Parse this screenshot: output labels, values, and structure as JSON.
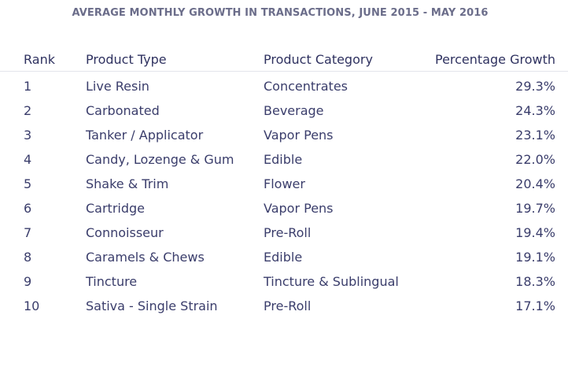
{
  "chart_data": {
    "type": "table",
    "title": "AVERAGE MONTHLY GROWTH IN TRANSACTIONS, JUNE 2015 - MAY 2016",
    "columns": [
      "Rank",
      "Product Type",
      "Product Category",
      "Percentage Growth"
    ],
    "rows": [
      {
        "rank": "1",
        "type": "Live Resin",
        "category": "Concentrates",
        "growth": "29.3%"
      },
      {
        "rank": "2",
        "type": "Carbonated",
        "category": "Beverage",
        "growth": "24.3%"
      },
      {
        "rank": "3",
        "type": "Tanker / Applicator",
        "category": "Vapor Pens",
        "growth": "23.1%"
      },
      {
        "rank": "4",
        "type": "Candy, Lozenge & Gum",
        "category": "Edible",
        "growth": "22.0%"
      },
      {
        "rank": "5",
        "type": "Shake & Trim",
        "category": "Flower",
        "growth": "20.4%"
      },
      {
        "rank": "6",
        "type": "Cartridge",
        "category": "Vapor Pens",
        "growth": "19.7%"
      },
      {
        "rank": "7",
        "type": "Connoisseur",
        "category": "Pre-Roll",
        "growth": "19.4%"
      },
      {
        "rank": "8",
        "type": "Caramels & Chews",
        "category": "Edible",
        "growth": "19.1%"
      },
      {
        "rank": "9",
        "type": "Tincture",
        "category": "Tincture & Sublingual",
        "growth": "18.3%"
      },
      {
        "rank": "10",
        "type": "Sativa - Single Strain",
        "category": "Pre-Roll",
        "growth": "17.1%"
      }
    ]
  },
  "colors": {
    "title": "#6b6d8a",
    "text": "#3a3d6b",
    "divider": "#e3e4ec"
  }
}
